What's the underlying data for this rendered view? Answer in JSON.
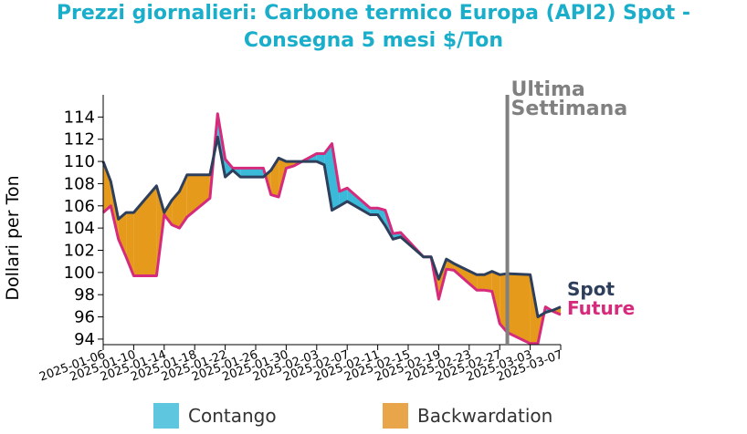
{
  "chart_data": {
    "type": "line",
    "title_line1": "Prezzi giornalieri: Carbone termico Europa (API2) Spot -",
    "title_line2": "Consegna 5 mesi $/Ton",
    "ylabel": "Dollari per Ton",
    "ylim": [
      93.5,
      116
    ],
    "yticks": [
      94,
      96,
      98,
      100,
      102,
      104,
      106,
      108,
      110,
      112,
      114
    ],
    "xlim": [
      "2025-01-06",
      "2025-03-07"
    ],
    "xticks": [
      "2025-01-06",
      "2025-01-10",
      "2025-01-14",
      "2025-01-18",
      "2025-01-22",
      "2025-01-26",
      "2025-01-30",
      "2025-02-03",
      "2025-02-07",
      "2025-02-11",
      "2025-02-15",
      "2025-02-19",
      "2025-02-23",
      "2025-02-27",
      "2025-03-03",
      "2025-03-07"
    ],
    "series": [
      {
        "name": "Spot",
        "color": "#2e3f5c",
        "x": [
          "2025-01-06",
          "2025-01-07",
          "2025-01-08",
          "2025-01-09",
          "2025-01-10",
          "2025-01-13",
          "2025-01-14",
          "2025-01-15",
          "2025-01-16",
          "2025-01-17",
          "2025-01-20",
          "2025-01-21",
          "2025-01-22",
          "2025-01-23",
          "2025-01-24",
          "2025-01-27",
          "2025-01-28",
          "2025-01-29",
          "2025-01-30",
          "2025-01-31",
          "2025-02-03",
          "2025-02-04",
          "2025-02-05",
          "2025-02-06",
          "2025-02-07",
          "2025-02-10",
          "2025-02-11",
          "2025-02-12",
          "2025-02-13",
          "2025-02-14",
          "2025-02-17",
          "2025-02-18",
          "2025-02-19",
          "2025-02-20",
          "2025-02-21",
          "2025-02-24",
          "2025-02-25",
          "2025-02-26",
          "2025-02-27",
          "2025-02-28",
          "2025-03-03",
          "2025-03-04",
          "2025-03-05",
          "2025-03-06",
          "2025-03-07"
        ],
        "y": [
          110.0,
          108.2,
          104.8,
          105.4,
          105.4,
          107.8,
          105.4,
          106.5,
          107.3,
          108.8,
          108.8,
          112.2,
          108.6,
          109.2,
          108.6,
          108.6,
          109.2,
          110.3,
          110.0,
          110.0,
          110.0,
          109.7,
          105.6,
          106.0,
          106.4,
          105.2,
          105.2,
          104.2,
          103.0,
          103.2,
          101.4,
          101.4,
          99.4,
          101.2,
          100.8,
          99.8,
          99.8,
          100.1,
          99.8,
          99.9,
          99.8,
          96.0,
          96.4,
          96.6,
          96.9
        ]
      },
      {
        "name": "Future",
        "color": "#d62b7c",
        "x": [
          "2025-01-06",
          "2025-01-07",
          "2025-01-08",
          "2025-01-09",
          "2025-01-10",
          "2025-01-13",
          "2025-01-14",
          "2025-01-15",
          "2025-01-16",
          "2025-01-17",
          "2025-01-20",
          "2025-01-21",
          "2025-01-22",
          "2025-01-23",
          "2025-01-24",
          "2025-01-27",
          "2025-01-28",
          "2025-01-29",
          "2025-01-30",
          "2025-01-31",
          "2025-02-03",
          "2025-02-04",
          "2025-02-05",
          "2025-02-06",
          "2025-02-07",
          "2025-02-10",
          "2025-02-11",
          "2025-02-12",
          "2025-02-13",
          "2025-02-14",
          "2025-02-17",
          "2025-02-18",
          "2025-02-19",
          "2025-02-20",
          "2025-02-21",
          "2025-02-24",
          "2025-02-25",
          "2025-02-26",
          "2025-02-27",
          "2025-02-28",
          "2025-03-03",
          "2025-03-04",
          "2025-03-05",
          "2025-03-06",
          "2025-03-07"
        ],
        "y": [
          105.4,
          106.0,
          103.0,
          101.4,
          99.7,
          99.7,
          105.2,
          104.3,
          104.0,
          105.0,
          106.7,
          114.3,
          110.2,
          109.4,
          109.4,
          109.4,
          107.0,
          106.8,
          109.4,
          109.6,
          110.7,
          110.7,
          111.6,
          107.3,
          107.6,
          105.8,
          105.8,
          105.6,
          103.5,
          103.6,
          101.4,
          101.4,
          97.6,
          100.3,
          100.2,
          98.4,
          98.4,
          98.3,
          95.4,
          94.6,
          93.6,
          93.6,
          96.9,
          96.5,
          96.2
        ]
      }
    ],
    "vline": {
      "x": "2025-02-28",
      "label_line1": "Ultima",
      "label_line2": "Settimana",
      "color": "#808080"
    },
    "series_labels": {
      "spot": "Spot",
      "future": "Future"
    },
    "legend": [
      {
        "label": "Contango",
        "color": "#5ec7df"
      },
      {
        "label": "Backwardation",
        "color": "#e8a54a"
      }
    ],
    "fill_colors": {
      "contango": "#3ab9d8",
      "backwardation": "#e69a1c"
    },
    "grid": false,
    "legend_position": "bottom"
  }
}
